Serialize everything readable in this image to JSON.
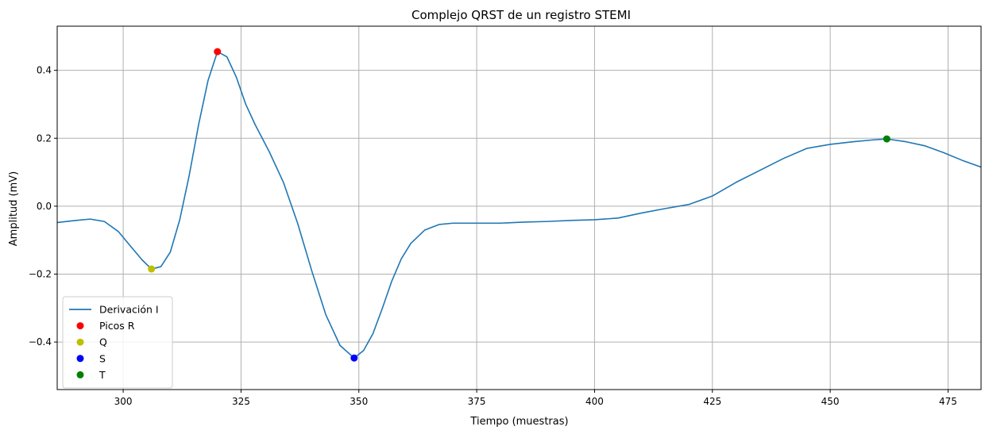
{
  "chart_data": {
    "type": "line",
    "title": "Complejo QRST de un registro STEMI",
    "xlabel": "Tiempo (muestras)",
    "ylabel": "Amplitud (mV)",
    "xlim": [
      286,
      482
    ],
    "ylim": [
      -0.54,
      0.53
    ],
    "xticks": [
      300,
      325,
      350,
      375,
      400,
      425,
      450,
      475
    ],
    "yticks": [
      -0.4,
      -0.2,
      0.0,
      0.2,
      0.4
    ],
    "ytick_labels": [
      "−0.4",
      "−0.2",
      "0.0",
      "0.2",
      "0.4"
    ],
    "grid": true,
    "legend_position": "lower-left",
    "series": [
      {
        "name": "Derivación I",
        "color": "#1f77b4",
        "points": [
          [
            286,
            -0.048
          ],
          [
            290,
            -0.042
          ],
          [
            293,
            -0.038
          ],
          [
            296,
            -0.045
          ],
          [
            299,
            -0.075
          ],
          [
            302,
            -0.125
          ],
          [
            304,
            -0.158
          ],
          [
            306,
            -0.185
          ],
          [
            308,
            -0.178
          ],
          [
            310,
            -0.135
          ],
          [
            312,
            -0.04
          ],
          [
            314,
            0.09
          ],
          [
            316,
            0.24
          ],
          [
            318,
            0.37
          ],
          [
            320,
            0.455
          ],
          [
            322,
            0.44
          ],
          [
            324,
            0.38
          ],
          [
            326,
            0.3
          ],
          [
            328,
            0.24
          ],
          [
            331,
            0.16
          ],
          [
            334,
            0.07
          ],
          [
            337,
            -0.05
          ],
          [
            340,
            -0.19
          ],
          [
            343,
            -0.32
          ],
          [
            346,
            -0.41
          ],
          [
            349,
            -0.447
          ],
          [
            351,
            -0.425
          ],
          [
            353,
            -0.375
          ],
          [
            355,
            -0.3
          ],
          [
            357,
            -0.22
          ],
          [
            359,
            -0.155
          ],
          [
            361,
            -0.11
          ],
          [
            364,
            -0.07
          ],
          [
            367,
            -0.054
          ],
          [
            370,
            -0.05
          ],
          [
            375,
            -0.05
          ],
          [
            380,
            -0.05
          ],
          [
            385,
            -0.047
          ],
          [
            390,
            -0.045
          ],
          [
            395,
            -0.042
          ],
          [
            400,
            -0.04
          ],
          [
            405,
            -0.035
          ],
          [
            410,
            -0.02
          ],
          [
            415,
            -0.007
          ],
          [
            420,
            0.005
          ],
          [
            425,
            0.03
          ],
          [
            430,
            0.07
          ],
          [
            435,
            0.105
          ],
          [
            440,
            0.14
          ],
          [
            445,
            0.17
          ],
          [
            450,
            0.182
          ],
          [
            455,
            0.19
          ],
          [
            459,
            0.195
          ],
          [
            462,
            0.198
          ],
          [
            466,
            0.19
          ],
          [
            470,
            0.178
          ],
          [
            474,
            0.158
          ],
          [
            478,
            0.135
          ],
          [
            482,
            0.115
          ]
        ]
      },
      {
        "name": "Picos R",
        "color": "#ff0000",
        "marker": "o",
        "points": [
          [
            320,
            0.455
          ]
        ]
      },
      {
        "name": "Q",
        "color": "#bfbf00",
        "marker": "o",
        "points": [
          [
            306,
            -0.185
          ]
        ]
      },
      {
        "name": "S",
        "color": "#0000ff",
        "marker": "o",
        "points": [
          [
            349,
            -0.447
          ]
        ]
      },
      {
        "name": "T",
        "color": "#008000",
        "marker": "o",
        "points": [
          [
            462,
            0.198
          ]
        ]
      }
    ]
  }
}
